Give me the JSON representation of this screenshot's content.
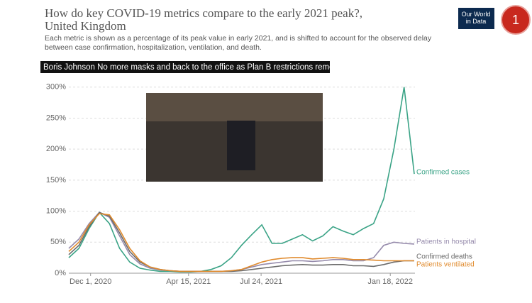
{
  "chart_data": {
    "type": "line",
    "title": "How do key COVID-19 metrics compare to the early 2021 peak?, United Kingdom",
    "subtitle": "Each metric is shown as a percentage of its peak value in early 2021, and is shifted to account for the observed delay between case confirmation, hospitalization, ventilation, and death.",
    "banner": "Boris Johnson No more masks and back to the office as Plan B restrictions removed",
    "logo": "Our World in Data",
    "badge": "1",
    "x": [
      "2020-11-01",
      "2020-11-15",
      "2020-11-29",
      "2020-12-13",
      "2020-12-27",
      "2021-01-10",
      "2021-01-24",
      "2021-02-07",
      "2021-02-21",
      "2021-03-07",
      "2021-03-21",
      "2021-04-04",
      "2021-04-18",
      "2021-05-02",
      "2021-05-16",
      "2021-05-30",
      "2021-06-13",
      "2021-06-27",
      "2021-07-11",
      "2021-07-25",
      "2021-08-08",
      "2021-08-22",
      "2021-09-05",
      "2021-09-19",
      "2021-10-03",
      "2021-10-17",
      "2021-10-31",
      "2021-11-14",
      "2021-11-28",
      "2021-12-12",
      "2021-12-26",
      "2022-01-09",
      "2022-01-23",
      "2022-02-06",
      "2022-02-20"
    ],
    "xlim": [
      "2020-11-01",
      "2022-02-21"
    ],
    "xticks": [
      {
        "value": "2020-12-01",
        "label": "Dec 1, 2020"
      },
      {
        "value": "2021-04-15",
        "label": "Apr 15, 2021"
      },
      {
        "value": "2021-07-24",
        "label": "Jul 24, 2021"
      },
      {
        "value": "2022-01-18",
        "label": "Jan 18, 2022"
      }
    ],
    "ylim": [
      0,
      310
    ],
    "yticks": [
      {
        "value": 0,
        "label": "0%"
      },
      {
        "value": 50,
        "label": "50%"
      },
      {
        "value": 100,
        "label": "100%"
      },
      {
        "value": 150,
        "label": "150%"
      },
      {
        "value": 200,
        "label": "200%"
      },
      {
        "value": 250,
        "label": "250%"
      },
      {
        "value": 300,
        "label": "300%"
      }
    ],
    "grid": true,
    "series": [
      {
        "name": "Confirmed cases",
        "color": "#3aa386",
        "values": [
          25,
          40,
          72,
          98,
          80,
          40,
          18,
          8,
          5,
          3,
          3,
          2,
          2,
          3,
          6,
          12,
          25,
          45,
          62,
          78,
          48,
          48,
          55,
          62,
          52,
          60,
          75,
          68,
          62,
          72,
          80,
          120,
          200,
          300,
          160
        ]
      },
      {
        "name": "Patients in hospital",
        "color": "#958aab",
        "values": [
          40,
          55,
          80,
          98,
          90,
          60,
          30,
          15,
          8,
          5,
          4,
          3,
          3,
          3,
          3,
          3,
          4,
          6,
          10,
          14,
          16,
          18,
          20,
          20,
          19,
          20,
          22,
          22,
          20,
          20,
          25,
          45,
          50,
          48,
          47
        ]
      },
      {
        "name": "Confirmed deaths",
        "color": "#6b6b6b",
        "values": [
          30,
          45,
          75,
          98,
          92,
          65,
          35,
          18,
          10,
          6,
          4,
          3,
          3,
          3,
          3,
          3,
          3,
          4,
          6,
          8,
          10,
          12,
          13,
          14,
          13,
          13,
          14,
          14,
          12,
          12,
          11,
          14,
          18,
          20,
          20
        ]
      },
      {
        "name": "Patients ventilated",
        "color": "#e08a2c",
        "values": [
          35,
          50,
          78,
          96,
          94,
          70,
          40,
          20,
          10,
          6,
          4,
          3,
          3,
          3,
          3,
          3,
          4,
          6,
          12,
          18,
          22,
          24,
          25,
          25,
          23,
          24,
          25,
          24,
          22,
          22,
          21,
          20,
          20,
          20,
          20
        ]
      }
    ]
  }
}
